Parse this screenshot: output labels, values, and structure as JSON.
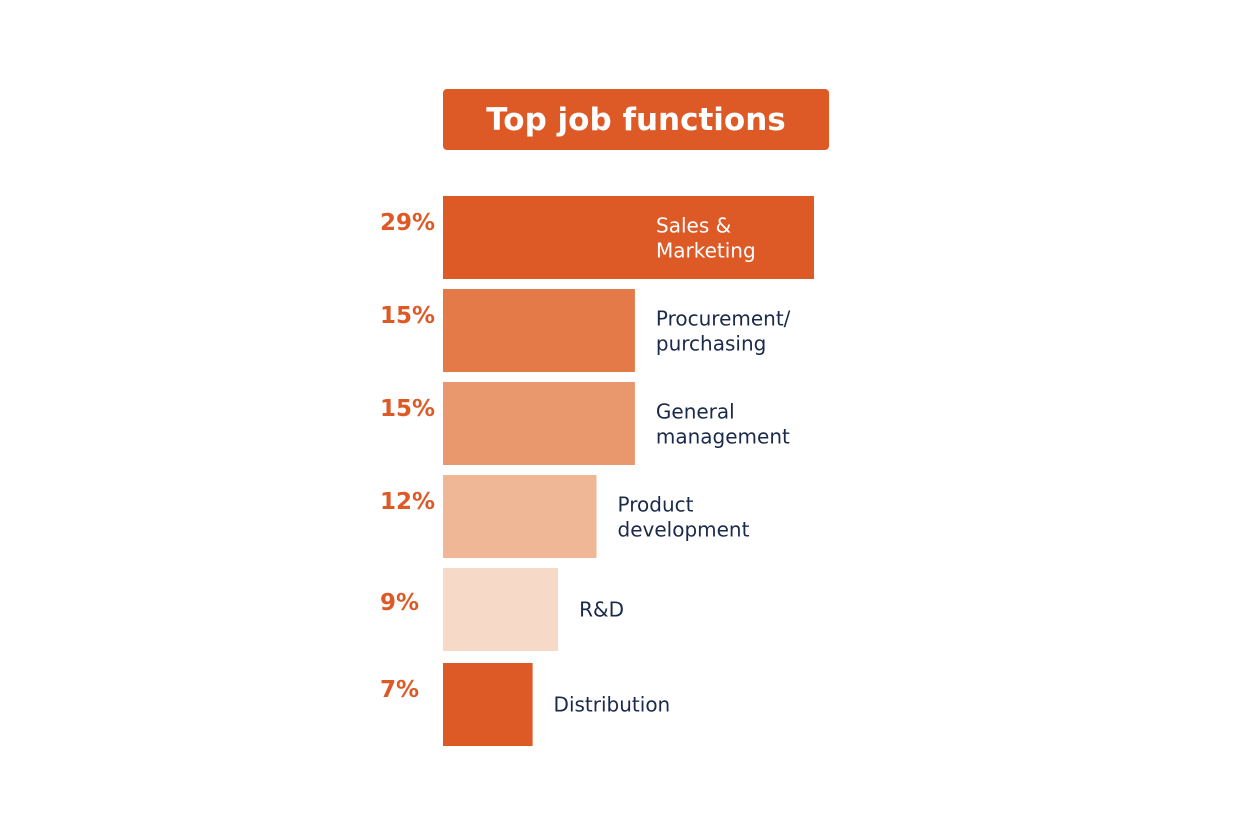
{
  "chart_data": {
    "type": "bar",
    "orientation": "horizontal",
    "title": "Top job functions",
    "categories": [
      [
        "Sales &",
        "Marketing"
      ],
      [
        "Procurement/",
        "purchasing"
      ],
      [
        "General",
        "management"
      ],
      [
        "Product",
        "development"
      ],
      [
        "R&D"
      ],
      [
        "Distribution"
      ]
    ],
    "values": [
      29,
      15,
      15,
      12,
      9,
      7
    ],
    "value_labels": [
      "29%",
      "15%",
      "15%",
      "12%",
      "9%",
      "7%"
    ],
    "xlim": [
      0,
      29
    ],
    "unit": "%",
    "grid": false,
    "legend": "none"
  },
  "colors": {
    "title_bg": "#DD5A27",
    "title_text": "#FFFFFF",
    "percent_text": "#DD5A27",
    "label_dark": "#1B2A4A",
    "label_light": "#FFFFFF",
    "bar_fills": [
      "#DD5A27",
      "#E47A48",
      "#E9976C",
      "#F0B796",
      "#F7D9C8",
      "#DD5A27"
    ]
  }
}
